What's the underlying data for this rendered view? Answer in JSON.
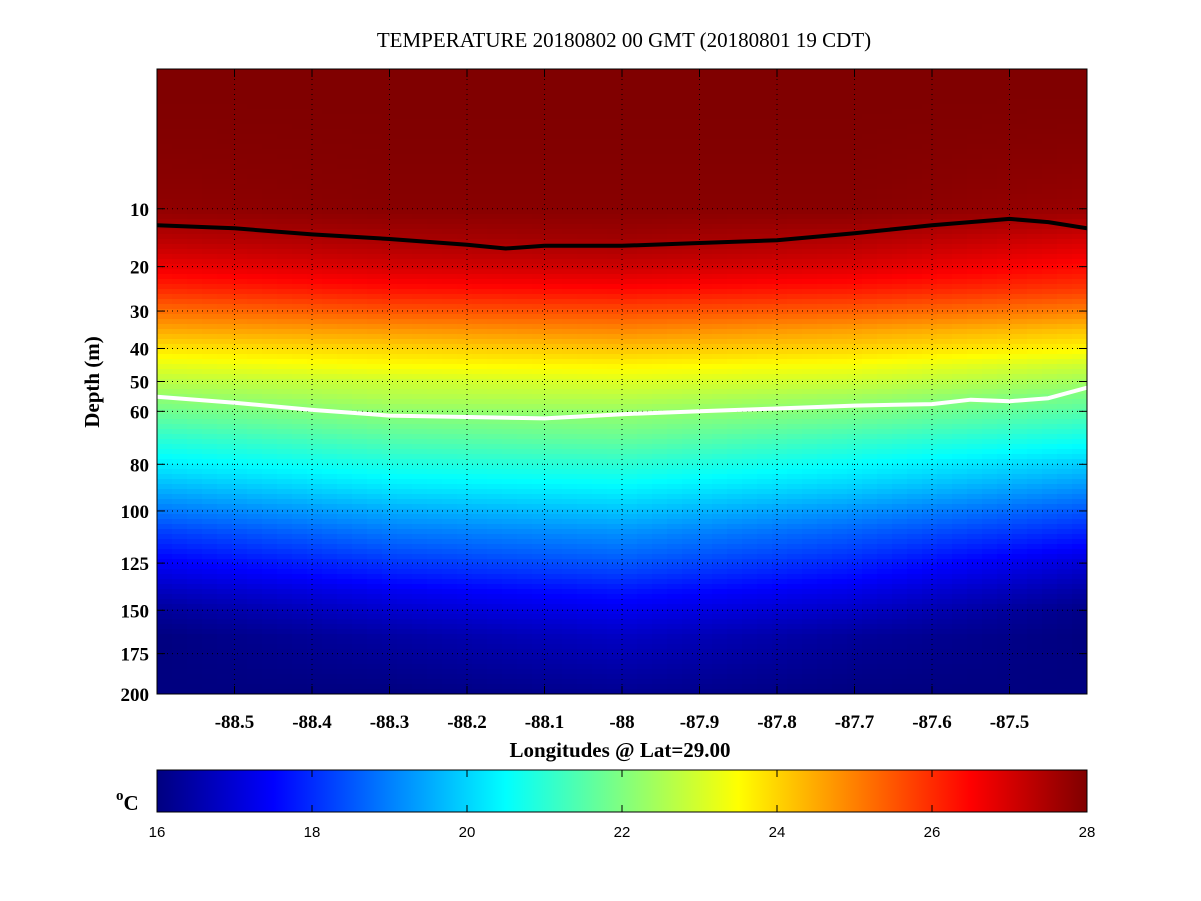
{
  "chart_data": {
    "type": "heatmap",
    "title": "TEMPERATURE 20180802 00 GMT (20180801 19 CDT)",
    "xlabel": "Longitudes @ Lat=29.00",
    "ylabel": "Depth (m)",
    "xlim": [
      -88.6,
      -87.4
    ],
    "ylim": [
      0,
      200
    ],
    "y_reversed": true,
    "y_scale": "sqrt",
    "grid": true,
    "x_ticks": [
      -88.5,
      -88.4,
      -88.3,
      -88.2,
      -88.1,
      -88.0,
      -87.9,
      -87.8,
      -87.7,
      -87.6,
      -87.5
    ],
    "x_tick_labels": [
      "-88.5",
      "-88.4",
      "-88.3",
      "-88.2",
      "-88.1",
      "-88",
      "-87.9",
      "-87.8",
      "-87.7",
      "-87.6",
      "-87.5"
    ],
    "y_ticks": [
      10,
      20,
      30,
      40,
      50,
      60,
      80,
      100,
      125,
      150,
      175,
      200
    ],
    "y_tick_labels": [
      "10",
      "20",
      "30",
      "40",
      "50",
      "60",
      "80",
      "100",
      "125",
      "150",
      "175",
      "200"
    ],
    "colorbar": {
      "label": "oC",
      "label_main": "o",
      "label_sub": "C",
      "range": [
        16,
        28
      ],
      "ticks": [
        16,
        18,
        20,
        22,
        24,
        26,
        28
      ],
      "tick_labels": [
        "16",
        "18",
        "20",
        "22",
        "24",
        "26",
        "28"
      ],
      "colormap": "jet"
    },
    "contours": [
      {
        "level": 26,
        "color": "#000000",
        "points": [
          [
            -88.6,
            12.5
          ],
          [
            -88.5,
            13.0
          ],
          [
            -88.4,
            14.0
          ],
          [
            -88.3,
            14.8
          ],
          [
            -88.2,
            15.8
          ],
          [
            -88.15,
            16.5
          ],
          [
            -88.1,
            16.0
          ],
          [
            -88.0,
            16.0
          ],
          [
            -87.9,
            15.5
          ],
          [
            -87.8,
            15.0
          ],
          [
            -87.7,
            13.8
          ],
          [
            -87.6,
            12.5
          ],
          [
            -87.5,
            11.5
          ],
          [
            -87.45,
            12.0
          ],
          [
            -87.4,
            13.0
          ]
        ]
      },
      {
        "level": 22.3,
        "color": "#ffffff",
        "points": [
          [
            -88.6,
            55.0
          ],
          [
            -88.5,
            57.0
          ],
          [
            -88.4,
            59.5
          ],
          [
            -88.3,
            61.5
          ],
          [
            -88.2,
            62.0
          ],
          [
            -88.1,
            62.5
          ],
          [
            -88.0,
            61.0
          ],
          [
            -87.9,
            60.0
          ],
          [
            -87.8,
            59.0
          ],
          [
            -87.7,
            58.0
          ],
          [
            -87.6,
            57.5
          ],
          [
            -87.55,
            56.0
          ],
          [
            -87.5,
            56.5
          ],
          [
            -87.45,
            55.5
          ],
          [
            -87.4,
            52.0
          ]
        ]
      }
    ],
    "temperature_profile": {
      "depths": [
        0,
        10,
        15,
        20,
        25,
        30,
        35,
        40,
        45,
        50,
        55,
        60,
        70,
        80,
        90,
        100,
        110,
        125,
        140,
        150,
        165,
        200
      ],
      "longitudes": [
        -88.6,
        -88.3,
        -88.0,
        -87.7,
        -87.4
      ],
      "values": [
        [
          28.0,
          28.0,
          28.0,
          28.0,
          28.0
        ],
        [
          27.8,
          27.9,
          27.9,
          27.9,
          27.7
        ],
        [
          27.3,
          27.5,
          27.6,
          27.4,
          27.0
        ],
        [
          26.7,
          27.0,
          27.1,
          26.9,
          26.4
        ],
        [
          26.0,
          26.3,
          26.4,
          26.2,
          25.8
        ],
        [
          25.2,
          25.5,
          25.6,
          25.4,
          25.0
        ],
        [
          24.5,
          24.7,
          24.9,
          24.6,
          24.2
        ],
        [
          23.8,
          24.0,
          24.2,
          24.0,
          23.6
        ],
        [
          23.2,
          23.5,
          23.6,
          23.4,
          22.9
        ],
        [
          22.7,
          22.9,
          23.1,
          22.9,
          22.4
        ],
        [
          22.2,
          22.6,
          22.7,
          22.4,
          21.9
        ],
        [
          21.8,
          22.2,
          22.3,
          22.0,
          21.5
        ],
        [
          21.0,
          21.5,
          21.7,
          21.2,
          20.7
        ],
        [
          20.3,
          20.8,
          21.0,
          20.5,
          19.9
        ],
        [
          19.6,
          20.2,
          20.4,
          19.9,
          19.2
        ],
        [
          18.9,
          19.5,
          19.8,
          19.2,
          18.5
        ],
        [
          18.2,
          18.9,
          19.2,
          18.6,
          17.9
        ],
        [
          17.4,
          18.1,
          18.5,
          17.9,
          17.0
        ],
        [
          16.7,
          17.3,
          17.7,
          17.2,
          16.4
        ],
        [
          16.3,
          16.9,
          17.3,
          16.8,
          16.1
        ],
        [
          16.0,
          16.4,
          16.8,
          16.3,
          16.0
        ],
        [
          16.0,
          16.0,
          16.2,
          16.0,
          16.0
        ]
      ]
    }
  }
}
